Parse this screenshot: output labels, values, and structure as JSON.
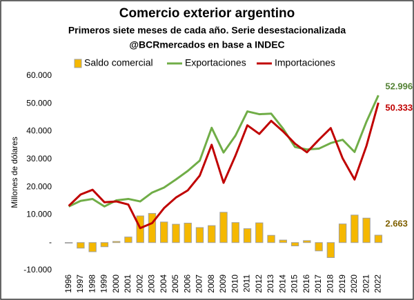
{
  "chart_data": {
    "type": "combo",
    "title": "Comercio exterior argentino",
    "subtitle": [
      "Primeros siete meses de cada año. Serie desestacionalizada",
      "@BCRmercados en base a INDEC"
    ],
    "y_label": "Millones de dólares",
    "categories": [
      "1996",
      "1997",
      "1998",
      "1999",
      "2000",
      "2001",
      "2002",
      "2003",
      "2004",
      "2005",
      "2006",
      "2007",
      "2008",
      "2009",
      "2010",
      "2011",
      "2012",
      "2013",
      "2014",
      "2015",
      "2016",
      "2017",
      "2018",
      "2019",
      "2020",
      "2021",
      "2022"
    ],
    "series": [
      {
        "name": "Saldo comercial",
        "type": "bar",
        "color": "#f5b800",
        "label_color": "#7f6000",
        "values": [
          -200,
          -2000,
          -3300,
          -1500,
          400,
          2000,
          9600,
          10500,
          7400,
          6600,
          7000,
          5400,
          6100,
          10900,
          7200,
          5000,
          7100,
          2600,
          900,
          -1200,
          700,
          -3000,
          -5400,
          6700,
          9900,
          8800,
          2663
        ],
        "value_labels": [
          null,
          null,
          null,
          null,
          null,
          null,
          null,
          null,
          null,
          null,
          null,
          null,
          null,
          null,
          null,
          null,
          null,
          null,
          null,
          null,
          null,
          null,
          null,
          null,
          null,
          null,
          "2.663"
        ]
      },
      {
        "name": "Exportaciones",
        "type": "line",
        "color": "#70ad47",
        "label_color": "#548235",
        "values": [
          13000,
          15000,
          15700,
          13000,
          15200,
          15700,
          14800,
          18000,
          19800,
          22700,
          25800,
          29500,
          41300,
          32400,
          38500,
          47200,
          46200,
          46400,
          41000,
          34400,
          33500,
          33800,
          35800,
          37000,
          32600,
          43500,
          52996
        ],
        "value_labels": [
          null,
          null,
          null,
          null,
          null,
          null,
          null,
          null,
          null,
          null,
          null,
          null,
          null,
          null,
          null,
          null,
          null,
          null,
          null,
          null,
          null,
          null,
          null,
          null,
          null,
          null,
          "52.996"
        ]
      },
      {
        "name": "Importaciones",
        "type": "line",
        "color": "#c00000",
        "label_color": "#c00000",
        "values": [
          13200,
          17300,
          19000,
          14500,
          14800,
          13700,
          5200,
          7000,
          12400,
          16200,
          18800,
          24100,
          35200,
          21500,
          31300,
          42200,
          39100,
          43800,
          40000,
          35600,
          32500,
          37000,
          41200,
          30300,
          22700,
          34800,
          50333
        ],
        "value_labels": [
          null,
          null,
          null,
          null,
          null,
          null,
          null,
          null,
          null,
          null,
          null,
          null,
          null,
          null,
          null,
          null,
          null,
          null,
          null,
          null,
          null,
          null,
          null,
          null,
          null,
          null,
          "50.333"
        ]
      }
    ],
    "ylim": [
      -10000,
      60000
    ],
    "yticks": [
      {
        "value": -10000,
        "label": "-10.000"
      },
      {
        "value": 0,
        "label": "-"
      },
      {
        "value": 10000,
        "label": "10.000"
      },
      {
        "value": 20000,
        "label": "20.000"
      },
      {
        "value": 30000,
        "label": "30.000"
      },
      {
        "value": 40000,
        "label": "40.000"
      },
      {
        "value": 50000,
        "label": "50.000"
      },
      {
        "value": 60000,
        "label": "60.000"
      }
    ],
    "legend": "top"
  }
}
